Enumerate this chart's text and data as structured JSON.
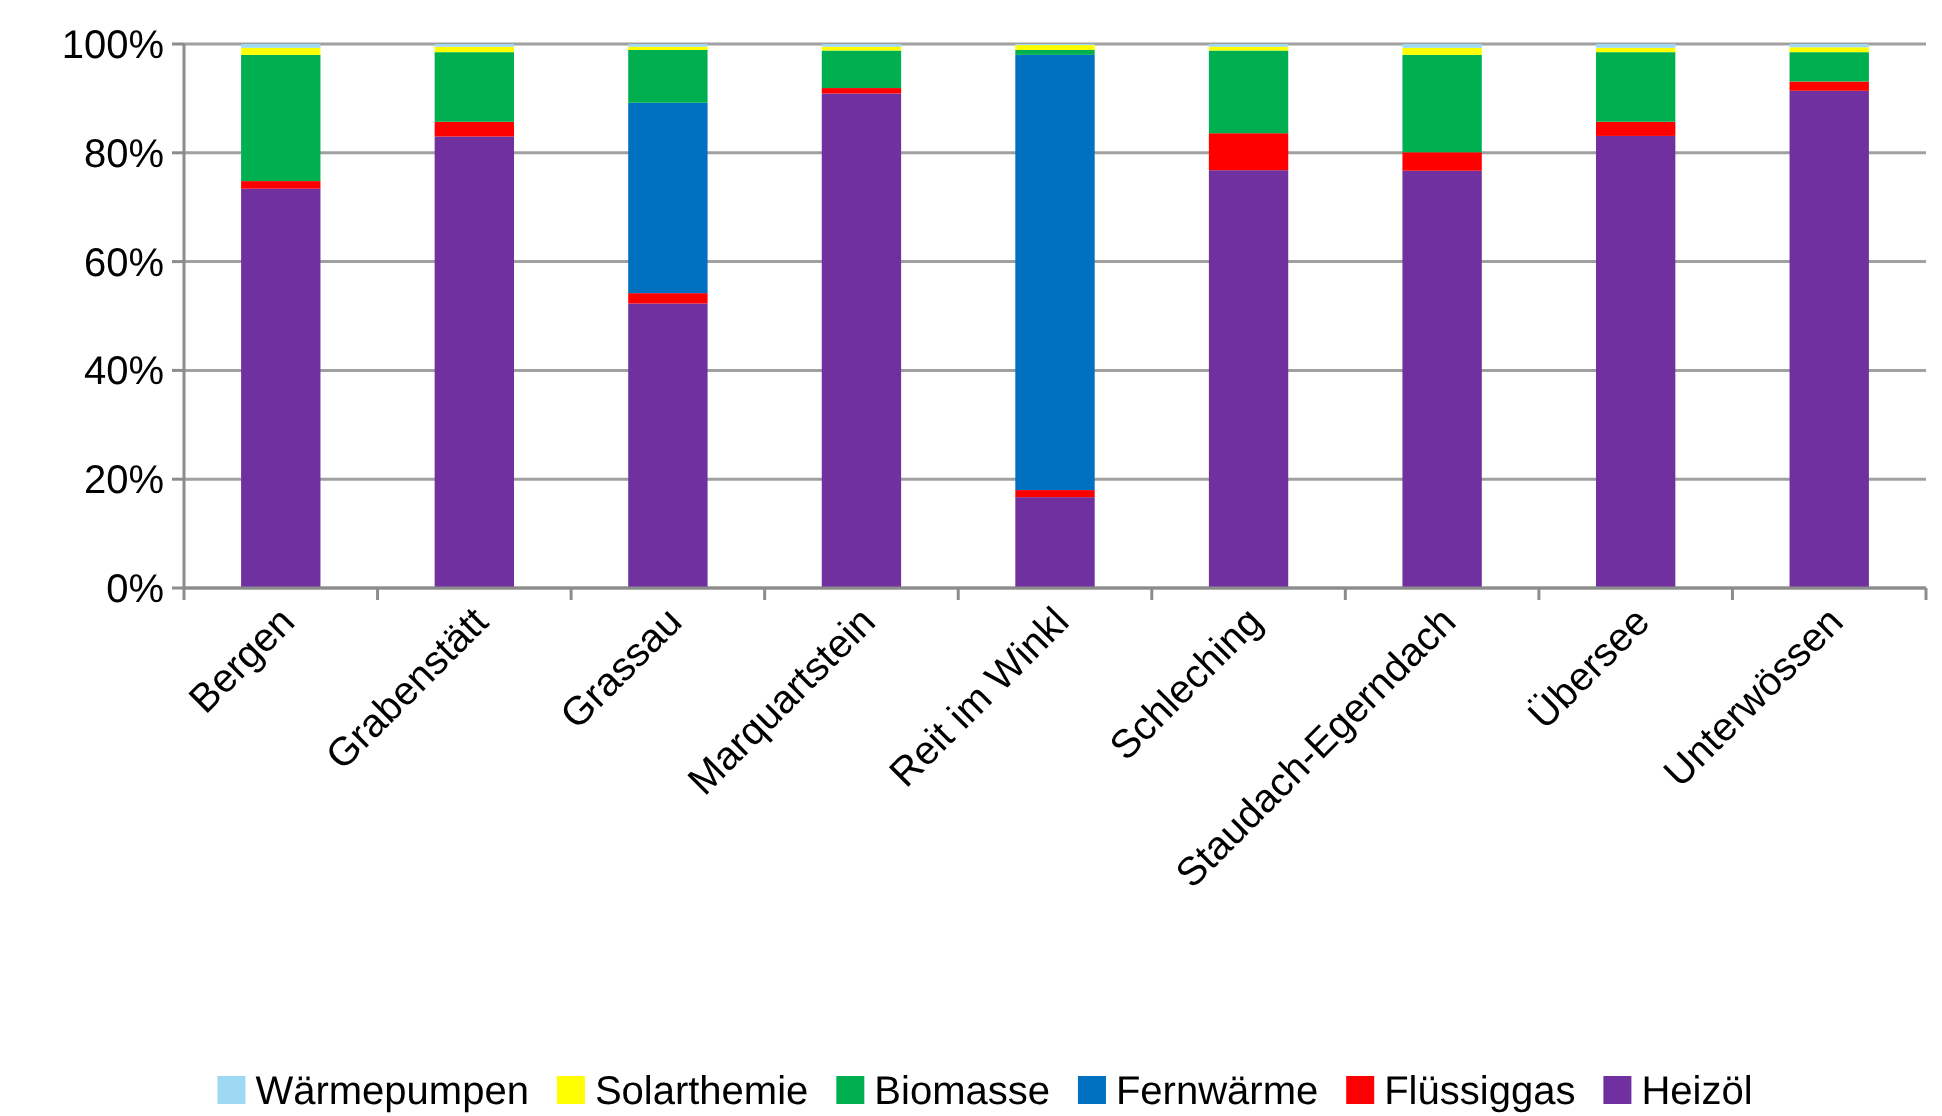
{
  "chart_data": {
    "type": "bar",
    "stacked": true,
    "categories": [
      "Bergen",
      "Grabenstätt",
      "Grassau",
      "Marquartstein",
      "Reit im Winkl",
      "Schleching",
      "Staudach-Egerndach",
      "Übersee",
      "Unterwössen"
    ],
    "series": [
      {
        "name": "Heizöl",
        "color": "#7030a0",
        "values": [
          73.4,
          83.0,
          52.3,
          90.9,
          16.7,
          76.8,
          76.7,
          83.1,
          91.4
        ]
      },
      {
        "name": "Flüssiggas",
        "color": "#ff0000",
        "values": [
          1.4,
          2.7,
          1.9,
          1.0,
          1.3,
          6.8,
          3.4,
          2.6,
          1.7
        ]
      },
      {
        "name": "Fernwärme",
        "color": "#0070c0",
        "values": [
          0,
          0,
          35.0,
          0,
          80.0,
          0,
          0,
          0,
          0
        ]
      },
      {
        "name": "Biomasse",
        "color": "#00b050",
        "values": [
          23.2,
          12.8,
          9.7,
          6.9,
          0.9,
          15.2,
          17.9,
          12.8,
          5.4
        ]
      },
      {
        "name": "Solarthemie",
        "color": "#ffff00",
        "values": [
          1.3,
          1.0,
          0.6,
          0.7,
          0.9,
          0.7,
          1.3,
          0.8,
          0.9
        ]
      },
      {
        "name": "Wärmepumpen",
        "color": "#9dd9f3",
        "values": [
          0.7,
          0.5,
          0.5,
          0.5,
          0.2,
          0.5,
          0.7,
          0.7,
          0.6
        ]
      }
    ],
    "ylim": [
      0,
      100
    ],
    "yticks": [
      {
        "value": 0,
        "label": "0%"
      },
      {
        "value": 20,
        "label": "20%"
      },
      {
        "value": 40,
        "label": "40%"
      },
      {
        "value": 60,
        "label": "60%"
      },
      {
        "value": 80,
        "label": "80%"
      },
      {
        "value": 100,
        "label": "100%"
      }
    ],
    "grid": "y",
    "legend": "bottom"
  }
}
